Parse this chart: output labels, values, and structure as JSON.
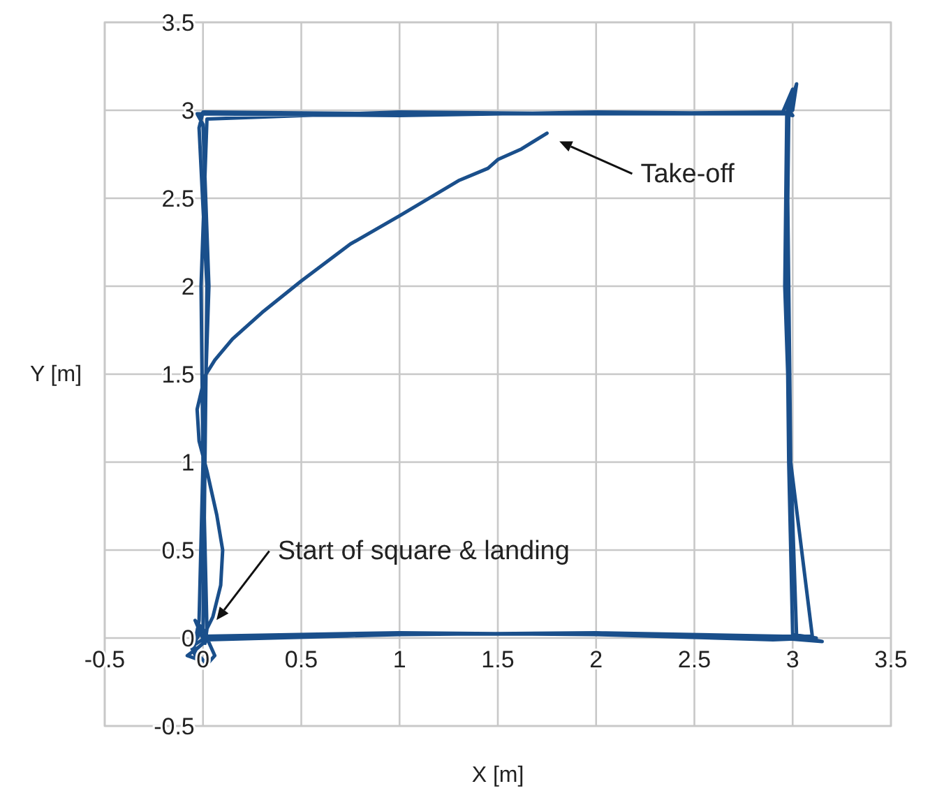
{
  "chart_data": {
    "type": "line",
    "xlabel": "X [m]",
    "ylabel": "Y [m]",
    "xlim": [
      -0.5,
      3.5
    ],
    "ylim": [
      -0.5,
      3.5
    ],
    "xticks": [
      -0.5,
      0,
      0.5,
      1,
      1.5,
      2,
      2.5,
      3,
      3.5
    ],
    "yticks": [
      -0.5,
      0,
      0.5,
      1,
      1.5,
      2,
      2.5,
      3,
      3.5
    ],
    "grid": true,
    "annotations": [
      "Take-off",
      "Start of square & landing"
    ],
    "series": [
      {
        "color": "#1a4f8b",
        "x": [
          1.75,
          1.62,
          1.5,
          1.45,
          1.3,
          1.0,
          0.75,
          0.5,
          0.3,
          0.15,
          0.06,
          0.01,
          -0.03,
          -0.02,
          0.02,
          0.07,
          0.1,
          0.09,
          0.05,
          0.01,
          0.0,
          1.0,
          2.0,
          2.9,
          3.12,
          3.0,
          2.98,
          2.97,
          2.98,
          3.0,
          2.95,
          2.0,
          1.0,
          0.0,
          -0.02,
          0.02,
          0.01,
          0.0,
          -0.06,
          0.01,
          1.0,
          2.0,
          2.93,
          3.15,
          3.02,
          2.99,
          2.96,
          2.97,
          3.02,
          3.0,
          2.94,
          2.0,
          1.0,
          -0.03,
          0.0,
          0.03,
          0.0,
          -0.02,
          -0.05,
          0.02,
          1.0,
          2.0,
          2.95,
          3.1,
          2.99,
          2.98,
          2.97,
          2.99,
          2.98,
          3.0,
          2.97,
          2.0,
          1.0,
          0.02,
          -0.01,
          0.0,
          0.02,
          0.01,
          -0.04,
          0.0,
          0.06,
          0.02,
          -0.06,
          -0.03,
          -0.08,
          -0.02
        ],
        "values": [
          2.87,
          2.78,
          2.72,
          2.67,
          2.6,
          2.4,
          2.24,
          2.03,
          1.85,
          1.7,
          1.58,
          1.49,
          1.3,
          1.12,
          0.95,
          0.7,
          0.5,
          0.3,
          0.12,
          0.03,
          0.01,
          0.03,
          0.02,
          -0.01,
          0.0,
          0.02,
          1.0,
          2.0,
          2.96,
          3.12,
          2.99,
          2.98,
          2.98,
          2.99,
          2.9,
          2.0,
          1.0,
          0.05,
          -0.05,
          0.0,
          0.02,
          0.03,
          0.0,
          -0.02,
          0.01,
          1.0,
          2.0,
          2.97,
          3.15,
          3.0,
          2.98,
          2.99,
          2.97,
          2.98,
          2.92,
          2.0,
          1.0,
          0.1,
          -0.08,
          -0.01,
          0.02,
          0.03,
          0.01,
          0.01,
          1.0,
          2.0,
          2.98,
          3.08,
          3.0,
          2.97,
          2.98,
          2.98,
          2.99,
          2.95,
          2.0,
          1.0,
          0.05,
          -0.03,
          0.1,
          0.05,
          -0.1,
          -0.15,
          -0.05,
          -0.12,
          -0.1,
          -0.05
        ]
      }
    ]
  }
}
